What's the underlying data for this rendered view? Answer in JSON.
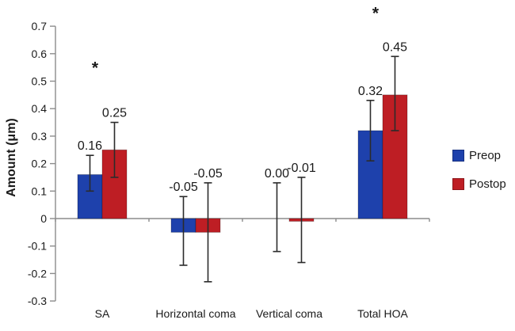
{
  "chart_data": {
    "type": "bar",
    "title": "",
    "ylabel": "Amount (μm)",
    "xlabel": "",
    "ylim": [
      -0.3,
      0.7
    ],
    "ytick_step": 0.1,
    "ytick_labels": [
      "0.7",
      "0.6",
      "0.5",
      "0.4",
      "0.3",
      "0.2",
      "0.1",
      "0",
      "-0.1",
      "-0.2",
      "-0.3"
    ],
    "grid": "off",
    "legend_position": "right",
    "categories": [
      "SA",
      "Horizontal coma",
      "Vertical coma",
      "Total HOA"
    ],
    "series": [
      {
        "name": "Preop",
        "color": "#1E41AC",
        "values": [
          0.16,
          -0.05,
          0.0,
          0.32
        ],
        "labels": [
          "0.16",
          "-0.05",
          "0.00",
          "0.32"
        ],
        "error_high": [
          0.23,
          0.08,
          0.13,
          0.43
        ],
        "error_low": [
          0.1,
          -0.17,
          -0.12,
          0.21
        ]
      },
      {
        "name": "Postop",
        "color": "#BE1E24",
        "values": [
          0.25,
          -0.05,
          -0.01,
          0.45
        ],
        "labels": [
          "0.25",
          "-0.05",
          "-0.01",
          "0.45"
        ],
        "error_high": [
          0.35,
          0.13,
          0.15,
          0.59
        ],
        "error_low": [
          0.15,
          -0.23,
          -0.16,
          0.32
        ]
      }
    ],
    "significance": [
      {
        "category_index": 0,
        "symbol": "*",
        "y": 0.56
      },
      {
        "category_index": 3,
        "symbol": "*",
        "y": 0.76
      }
    ],
    "colors": {
      "axis": "#8C8C8C",
      "error_bar": "#2B2B2B",
      "text": "#1A1A1A"
    }
  }
}
